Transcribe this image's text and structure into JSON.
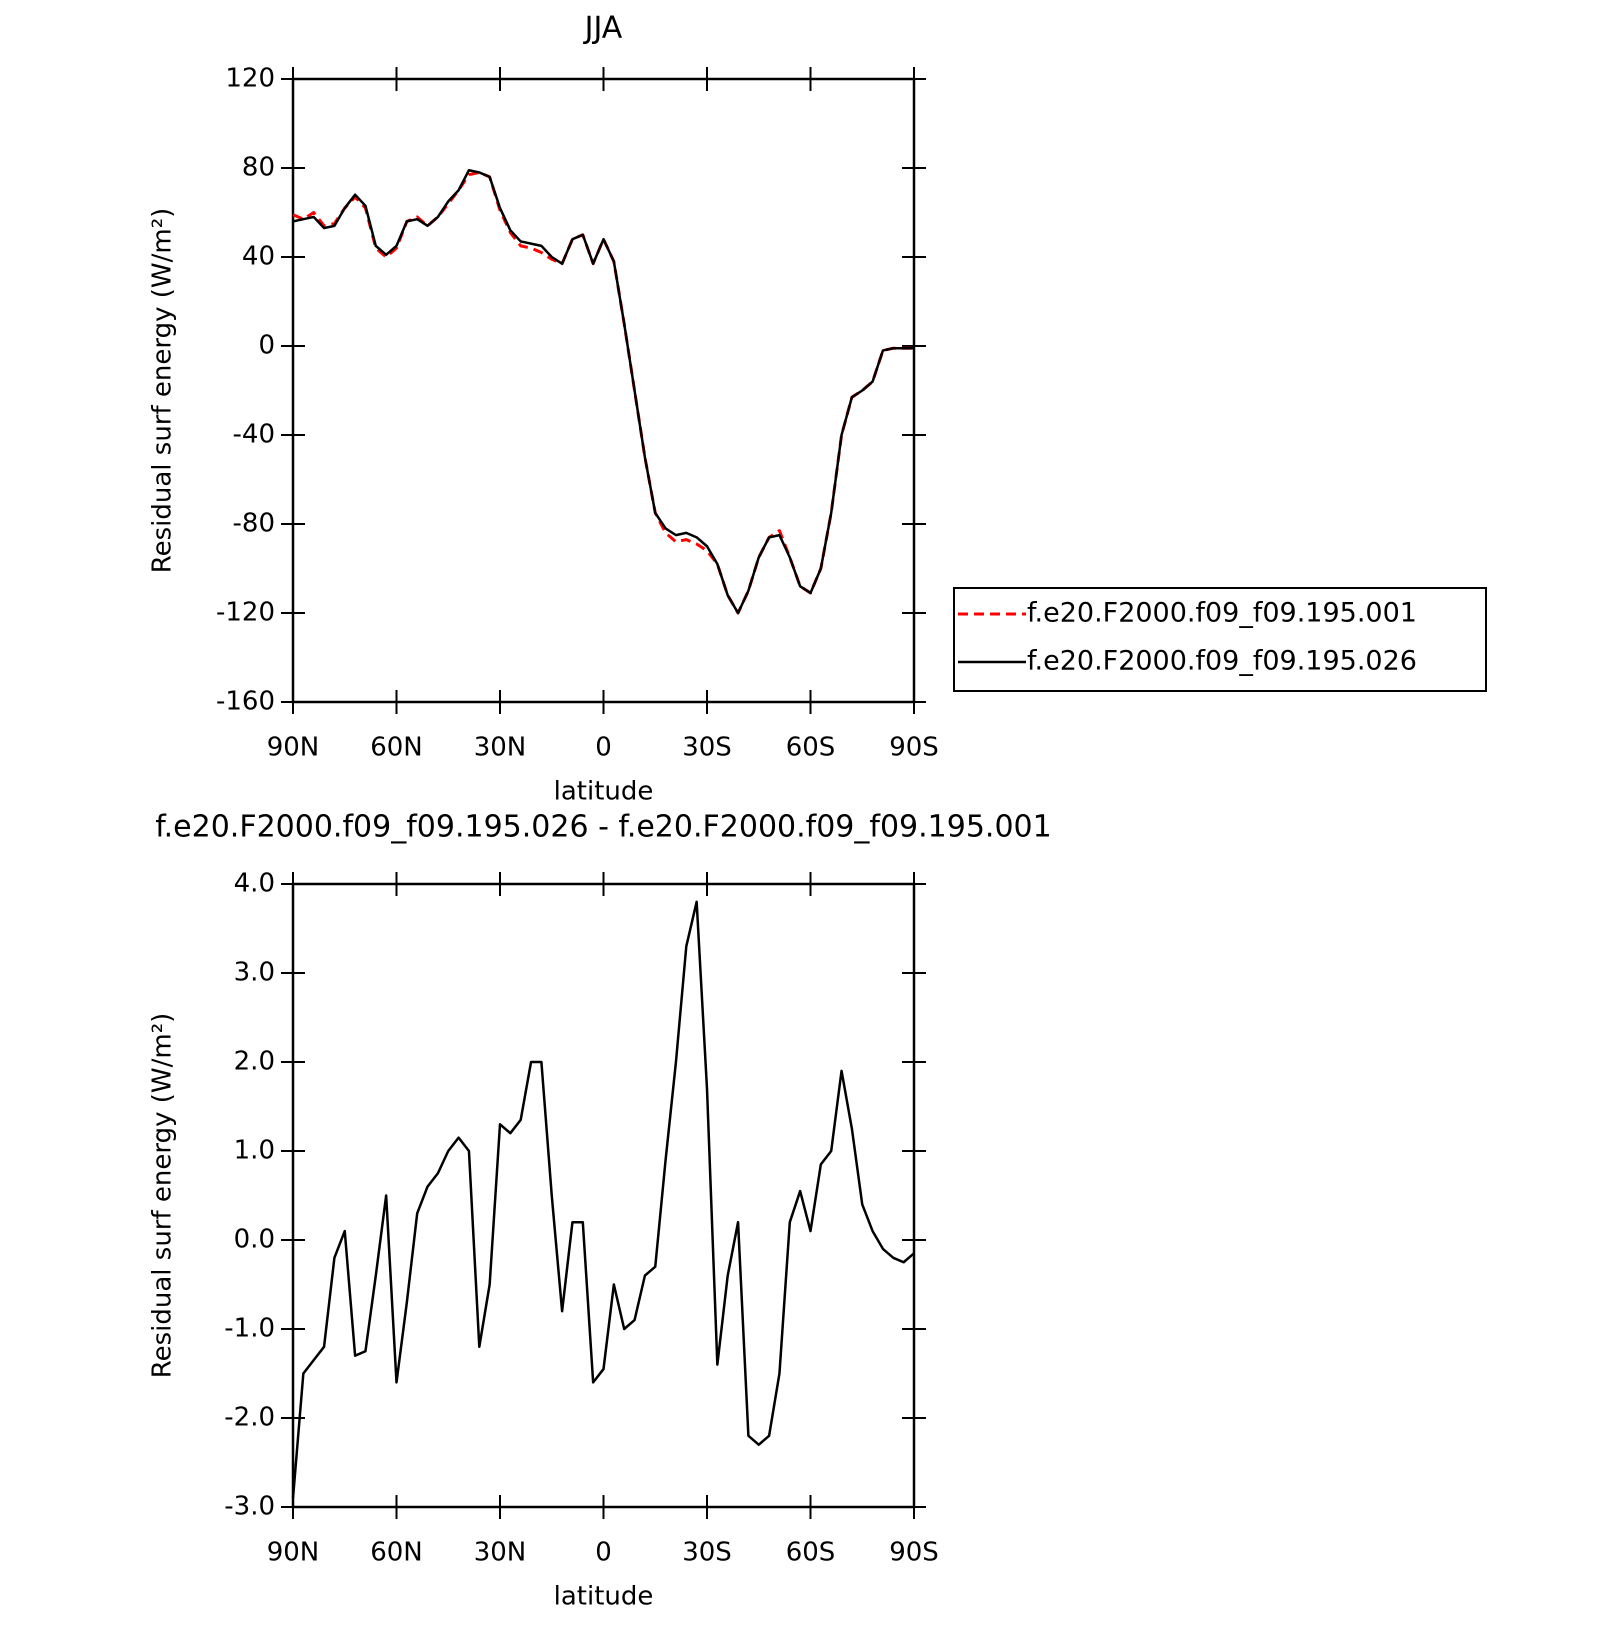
{
  "chart_data": [
    {
      "type": "line",
      "title": "JJA",
      "xlabel": "latitude",
      "ylabel": "Residual surf energy (W/m²)",
      "x": [
        90,
        87,
        84,
        81,
        78,
        75,
        72,
        69,
        66,
        63,
        60,
        57,
        54,
        51,
        48,
        45,
        42,
        39,
        36,
        33,
        30,
        27,
        24,
        21,
        18,
        15,
        12,
        9,
        6,
        3,
        0,
        -3,
        -6,
        -9,
        -12,
        -15,
        -18,
        -21,
        -24,
        -27,
        -30,
        -33,
        -36,
        -39,
        -42,
        -45,
        -48,
        -51,
        -54,
        -57,
        -60,
        -63,
        -66,
        -69,
        -72,
        -75,
        -78,
        -81,
        -84,
        -87,
        -90
      ],
      "series": [
        {
          "name": "f.e20.F2000.f09_f09.195.001",
          "color": "#ff0000",
          "dash": true,
          "values": [
            59,
            57,
            60,
            54,
            55,
            62,
            67,
            62,
            44,
            40,
            44,
            56,
            58,
            54,
            58,
            64,
            70,
            77,
            78,
            76,
            61,
            51,
            45,
            44,
            42,
            39,
            37,
            48,
            50,
            37,
            48,
            38,
            10,
            -20,
            -50,
            -75,
            -84,
            -88,
            -87,
            -89,
            -92,
            -98,
            -112,
            -120,
            -110,
            -95,
            -86,
            -83,
            -95,
            -108,
            -111,
            -100,
            -75,
            -40,
            -23,
            -20,
            -16,
            -2,
            -1,
            -1,
            -1
          ]
        },
        {
          "name": "f.e20.F2000.f09_f09.195.026",
          "color": "#000000",
          "dash": false,
          "values": [
            56,
            57,
            58,
            53,
            54,
            62,
            68,
            63,
            45,
            41,
            45,
            56,
            57,
            54,
            58,
            65,
            70,
            79,
            78,
            76,
            62,
            52,
            47,
            46,
            45,
            40,
            37,
            48,
            50,
            37,
            48,
            38,
            10,
            -20,
            -50,
            -75,
            -82,
            -85,
            -84,
            -86,
            -90,
            -98,
            -112,
            -120,
            -110,
            -95,
            -86,
            -85,
            -95,
            -108,
            -111,
            -100,
            -75,
            -40,
            -23,
            -20,
            -16,
            -2,
            -1,
            -1,
            -1
          ]
        }
      ],
      "xlim": [
        90,
        -90
      ],
      "xticks": [
        {
          "value": 90,
          "label": "90N"
        },
        {
          "value": 60,
          "label": "60N"
        },
        {
          "value": 30,
          "label": "30N"
        },
        0,
        {
          "value": -30,
          "label": "30S"
        },
        {
          "value": -60,
          "label": "60S"
        },
        {
          "value": -90,
          "label": "90S"
        }
      ],
      "ylim": [
        -160,
        120
      ],
      "yticks": [
        -160,
        -120,
        -80,
        -40,
        0,
        40,
        80,
        120
      ],
      "legend": "right"
    },
    {
      "type": "line",
      "title": "f.e20.F2000.f09_f09.195.026 - f.e20.F2000.f09_f09.195.001",
      "xlabel": "latitude",
      "ylabel": "Residual surf energy (W/m²)",
      "x": [
        90,
        87,
        84,
        81,
        78,
        75,
        72,
        69,
        66,
        63,
        60,
        57,
        54,
        51,
        48,
        45,
        42,
        39,
        36,
        33,
        30,
        27,
        24,
        21,
        18,
        15,
        12,
        9,
        6,
        3,
        0,
        -3,
        -6,
        -9,
        -12,
        -15,
        -18,
        -21,
        -24,
        -27,
        -30,
        -33,
        -36,
        -39,
        -42,
        -45,
        -48,
        -51,
        -54,
        -57,
        -60,
        -63,
        -66,
        -69,
        -72,
        -75,
        -78,
        -81,
        -84,
        -87,
        -90
      ],
      "series": [
        {
          "color": "#000000",
          "values": [
            -2.9,
            -1.5,
            -1.35,
            -1.2,
            -0.2,
            0.1,
            -1.3,
            -1.25,
            -0.4,
            0.5,
            -1.6,
            -0.7,
            0.3,
            0.6,
            0.75,
            1.0,
            1.15,
            1.0,
            -1.2,
            -0.5,
            1.3,
            1.2,
            1.35,
            2.0,
            2.0,
            0.5,
            -0.8,
            0.2,
            0.2,
            -1.6,
            -1.45,
            -0.5,
            -1.0,
            -0.9,
            -0.4,
            -0.3,
            0.9,
            2.0,
            3.3,
            3.8,
            1.7,
            -1.4,
            -0.4,
            0.2,
            -2.2,
            -2.3,
            -2.2,
            -1.5,
            0.2,
            0.55,
            0.1,
            0.85,
            1.0,
            1.9,
            1.25,
            0.4,
            0.1,
            -0.1,
            -0.2,
            -0.25,
            -0.15
          ]
        }
      ],
      "xlim": [
        90,
        -90
      ],
      "xticks": [
        {
          "value": 90,
          "label": "90N"
        },
        {
          "value": 60,
          "label": "60N"
        },
        {
          "value": 30,
          "label": "30N"
        },
        0,
        {
          "value": -30,
          "label": "30S"
        },
        {
          "value": -60,
          "label": "60S"
        },
        {
          "value": -90,
          "label": "90S"
        }
      ],
      "ylim": [
        -3,
        4
      ],
      "yticks": [
        {
          "value": -3,
          "label": "-3.0"
        },
        {
          "value": -2,
          "label": "-2.0"
        },
        {
          "value": -1,
          "label": "-1.0"
        },
        {
          "value": 0,
          "label": "0.0"
        },
        {
          "value": 1,
          "label": "1.0"
        },
        {
          "value": 2,
          "label": "2.0"
        },
        {
          "value": 3,
          "label": "3.0"
        },
        {
          "value": 4,
          "label": "4.0"
        }
      ]
    }
  ]
}
